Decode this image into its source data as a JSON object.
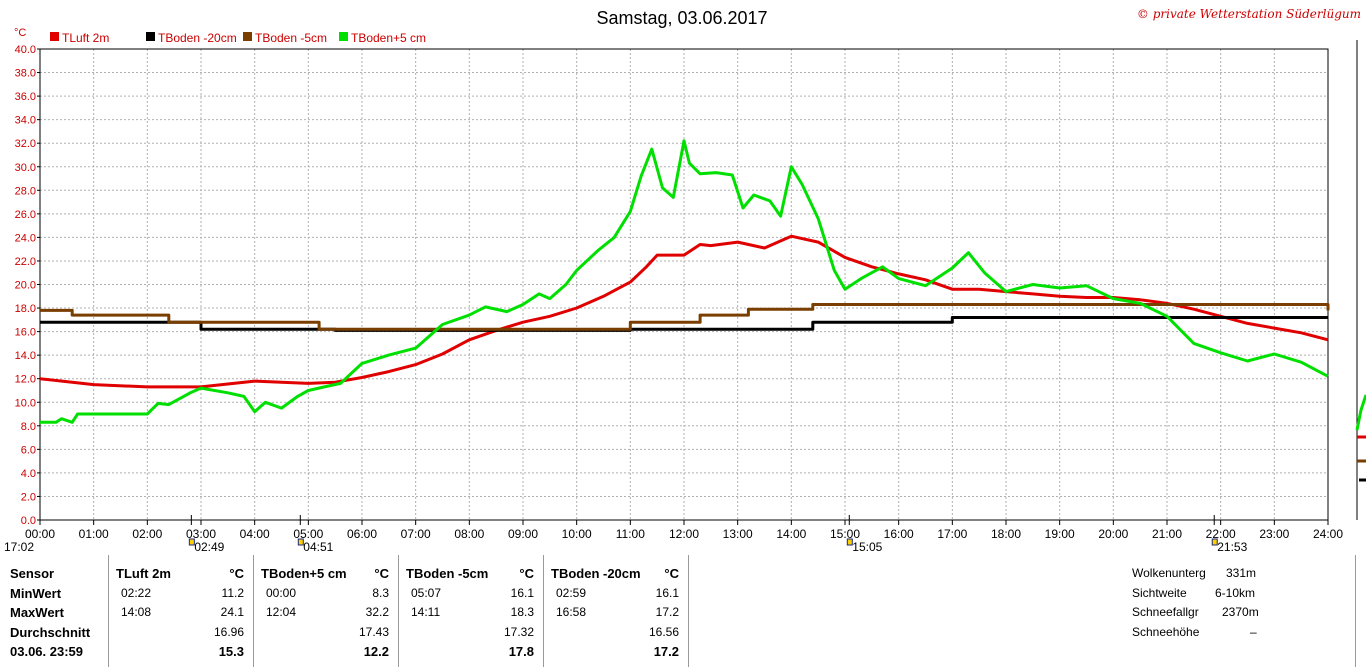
{
  "copyright": "© private Wetterstation Süderlügum",
  "chart_data": {
    "type": "line",
    "title": "Samstag, 03.06.2017",
    "ylabel": "°C",
    "ylim": [
      0,
      40
    ],
    "yticks": [
      "0.0",
      "2.0",
      "4.0",
      "6.0",
      "8.0",
      "10.0",
      "12.0",
      "14.0",
      "16.0",
      "18.0",
      "20.0",
      "22.0",
      "24.0",
      "26.0",
      "28.0",
      "30.0",
      "32.0",
      "34.0",
      "36.0",
      "38.0",
      "40.0"
    ],
    "xlim": [
      0,
      24
    ],
    "xticks": [
      "00:00",
      "01:00",
      "02:00",
      "03:00",
      "04:00",
      "05:00",
      "06:00",
      "07:00",
      "08:00",
      "09:00",
      "10:00",
      "11:00",
      "12:00",
      "13:00",
      "14:00",
      "15:00",
      "16:00",
      "17:00",
      "18:00",
      "19:00",
      "20:00",
      "21:00",
      "22:00",
      "23:00",
      "24:00"
    ],
    "grid": true,
    "legend_position": "top-left",
    "series": [
      {
        "name": "TLuft 2m",
        "color": "#e00000",
        "x": [
          0,
          1,
          2,
          3,
          4,
          5,
          5.5,
          6,
          6.5,
          7,
          7.5,
          8,
          8.5,
          9,
          9.5,
          10,
          10.5,
          11,
          11.3,
          11.5,
          12,
          12.3,
          12.5,
          13,
          13.5,
          14,
          14.5,
          15,
          15.5,
          16,
          16.5,
          17,
          17.5,
          18,
          18.5,
          19,
          19.5,
          20,
          20.5,
          21,
          21.5,
          22,
          22.5,
          23,
          23.5,
          24
        ],
        "y": [
          12,
          11.5,
          11.3,
          11.3,
          11.8,
          11.6,
          11.7,
          12.1,
          12.6,
          13.2,
          14.1,
          15.3,
          16.1,
          16.8,
          17.3,
          18,
          19,
          20.2,
          21.5,
          22.5,
          22.5,
          23.4,
          23.3,
          23.6,
          23.1,
          24.1,
          23.6,
          22.3,
          21.5,
          20.9,
          20.4,
          19.6,
          19.6,
          19.4,
          19.2,
          19,
          18.9,
          18.9,
          18.7,
          18.4,
          17.9,
          17.3,
          16.7,
          16.3,
          15.9,
          15.3
        ]
      },
      {
        "name": "TBoden -20cm",
        "color": "#000000",
        "x": [
          0,
          3,
          3,
          5.5,
          5.5,
          11,
          11,
          14.4,
          14.4,
          17,
          17,
          24
        ],
        "y": [
          16.8,
          16.8,
          16.2,
          16.2,
          16.1,
          16.1,
          16.2,
          16.2,
          16.8,
          16.8,
          17.2,
          17.2
        ]
      },
      {
        "name": "TBoden -5cm",
        "color": "#7a3e00",
        "x": [
          0,
          0.6,
          0.6,
          2.4,
          2.4,
          5.2,
          5.2,
          11,
          11,
          12.3,
          12.3,
          13.2,
          13.2,
          14.4,
          14.4,
          24,
          24
        ],
        "y": [
          17.8,
          17.8,
          17.4,
          17.4,
          16.8,
          16.8,
          16.2,
          16.2,
          16.8,
          16.8,
          17.4,
          17.4,
          17.9,
          17.9,
          18.3,
          18.3,
          17.8
        ]
      },
      {
        "name": "TBoden+5 cm",
        "color": "#00e000",
        "x": [
          0,
          0.3,
          0.4,
          0.6,
          0.7,
          1,
          2,
          2.2,
          2.4,
          2.6,
          2.8,
          3,
          3.5,
          3.8,
          4,
          4.2,
          4.5,
          4.8,
          5,
          5.3,
          5.6,
          6,
          6.5,
          7,
          7.5,
          8,
          8.3,
          8.7,
          9,
          9.3,
          9.5,
          9.8,
          10,
          10.4,
          10.7,
          11,
          11.2,
          11.4,
          11.6,
          11.8,
          12,
          12.1,
          12.3,
          12.6,
          12.9,
          13.1,
          13.3,
          13.6,
          13.8,
          14,
          14.2,
          14.5,
          14.8,
          15,
          15.3,
          15.7,
          16,
          16.5,
          17,
          17.3,
          17.6,
          18,
          18.5,
          19,
          19.5,
          20,
          20.5,
          21,
          21.5,
          22,
          22.5,
          23,
          23.5,
          24
        ],
        "y": [
          8.3,
          8.3,
          8.6,
          8.3,
          9,
          9,
          9,
          9.9,
          9.8,
          10.3,
          10.8,
          11.2,
          10.8,
          10.5,
          9.2,
          10,
          9.5,
          10.5,
          11,
          11.3,
          11.6,
          13.3,
          14,
          14.6,
          16.6,
          17.4,
          18.1,
          17.7,
          18.3,
          19.2,
          18.8,
          20,
          21.2,
          22.9,
          24,
          26.2,
          29.2,
          31.5,
          28.2,
          27.4,
          32.2,
          30.3,
          29.4,
          29.5,
          29.3,
          26.5,
          27.6,
          27.1,
          25.8,
          30,
          28.5,
          25.6,
          21.2,
          19.6,
          20.5,
          21.5,
          20.5,
          19.9,
          21.4,
          22.7,
          21,
          19.4,
          20,
          19.7,
          19.9,
          18.8,
          18.4,
          17.3,
          15,
          14.2,
          13.5,
          14.1,
          13.4,
          12.2
        ]
      }
    ],
    "annotations": [
      {
        "label": "17:02",
        "x": 0
      },
      {
        "label": "02:49",
        "x": 2.82
      },
      {
        "label": "04:51",
        "x": 4.85
      },
      {
        "label": "15:05",
        "x": 15.08
      },
      {
        "label": "21:53",
        "x": 21.88
      }
    ]
  },
  "table": {
    "row_labels": [
      "Sensor",
      "MinWert",
      "MaxWert",
      "Durchschnitt",
      "03.06. 23:59"
    ],
    "columns": [
      {
        "name": "TLuft 2m",
        "unit": "°C",
        "min_time": "02:22",
        "min": "11.2",
        "max_time": "14:08",
        "max": "24.1",
        "avg": "16.96",
        "last": "15.3"
      },
      {
        "name": "TBoden+5 cm",
        "unit": "°C",
        "min_time": "00:00",
        "min": "8.3",
        "max_time": "12:04",
        "max": "32.2",
        "avg": "17.43",
        "last": "12.2"
      },
      {
        "name": "TBoden -5cm",
        "unit": "°C",
        "min_time": "05:07",
        "min": "16.1",
        "max_time": "14:11",
        "max": "18.3",
        "avg": "17.32",
        "last": "17.8"
      },
      {
        "name": "TBoden -20cm",
        "unit": "°C",
        "min_time": "02:59",
        "min": "16.1",
        "max_time": "16:58",
        "max": "17.2",
        "avg": "16.56",
        "last": "17.2"
      }
    ],
    "extra": [
      {
        "label": "Wolkenunterg",
        "value": "331m"
      },
      {
        "label": "Sichtweite",
        "value": "6-10km"
      },
      {
        "label": "Schneefallgr",
        "value": "2370m"
      },
      {
        "label": "Schneehöhe",
        "value": "–"
      }
    ]
  }
}
